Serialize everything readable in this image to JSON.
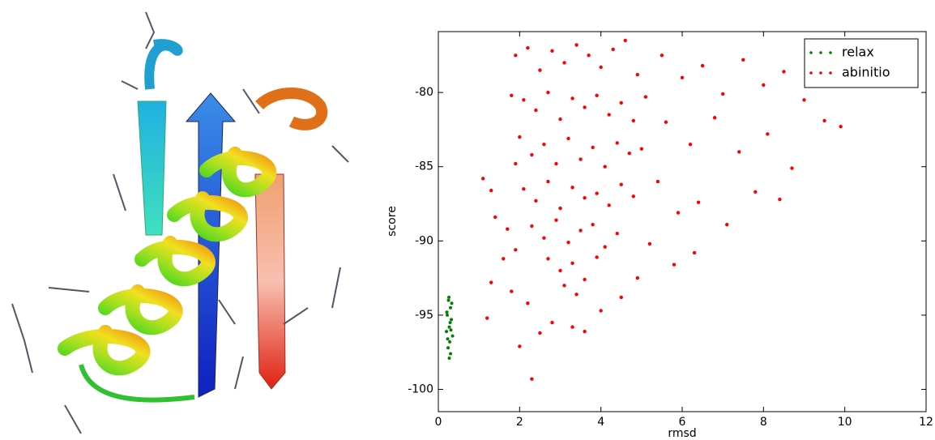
{
  "chart_data": {
    "type": "scatter",
    "x_label": "rmsd",
    "y_label": "score",
    "xlim": [
      0,
      12
    ],
    "ylim": [
      -101.5,
      -75.9
    ],
    "xticks": [
      0,
      2,
      4,
      6,
      8,
      10,
      12
    ],
    "yticks": [
      -100,
      -95,
      -90,
      -85,
      -80
    ],
    "grid": false,
    "legend": "upper right",
    "series": [
      {
        "name": "relax",
        "color": "#008000",
        "x": [
          0.25,
          0.3,
          0.22,
          0.32,
          0.27,
          0.2,
          0.35,
          0.28,
          0.24,
          0.3,
          0.26,
          0.33,
          0.21,
          0.29,
          0.31,
          0.23,
          0.27
        ],
        "values": [
          -94,
          -94.5,
          -95,
          -95.3,
          -95.8,
          -96.1,
          -96.4,
          -96.8,
          -97.2,
          -97.6,
          -93.8,
          -94.2,
          -94.8,
          -95.5,
          -96,
          -96.6,
          -97.9
        ]
      },
      {
        "name": "abinitio",
        "color": "#ff0000",
        "x": [
          2.2,
          2.5,
          2.8,
          3.1,
          3.4,
          3.7,
          4.0,
          4.3,
          4.6,
          4.9,
          2.1,
          2.4,
          2.7,
          3.0,
          3.3,
          3.6,
          3.9,
          4.2,
          4.5,
          4.8,
          5.1,
          2.0,
          2.3,
          2.6,
          2.9,
          3.2,
          3.5,
          3.8,
          4.1,
          4.4,
          4.7,
          5.0,
          2.1,
          2.4,
          2.7,
          3.0,
          3.3,
          3.6,
          3.9,
          4.2,
          4.5,
          4.8,
          2.3,
          2.6,
          2.9,
          3.2,
          3.5,
          3.8,
          4.1,
          4.4,
          2.7,
          3.0,
          3.3,
          3.6,
          3.9,
          3.4,
          3.1,
          5.5,
          6.0,
          6.5,
          7.0,
          7.5,
          8.0,
          8.5,
          9.0,
          5.6,
          6.2,
          6.8,
          7.4,
          8.1,
          8.7,
          9.5,
          9.9,
          5.4,
          5.9,
          6.4,
          7.1,
          7.8,
          8.4,
          5.2,
          5.8,
          6.3,
          4.9,
          4.5,
          4.0,
          3.3,
          2.8,
          2.2,
          1.8,
          1.9,
          1.6,
          1.3,
          1.2,
          1.1,
          1.4,
          1.7,
          1.9,
          2.3,
          2.5,
          3.6,
          2.0,
          1.3,
          1.8,
          1.9
        ],
        "values": [
          -77,
          -78.5,
          -77.2,
          -78,
          -76.8,
          -77.5,
          -78.3,
          -77.1,
          -76.5,
          -78.8,
          -80.5,
          -81.2,
          -80,
          -81.8,
          -80.4,
          -81,
          -80.2,
          -81.5,
          -80.7,
          -81.9,
          -80.3,
          -83,
          -84.2,
          -83.5,
          -84.8,
          -83.1,
          -84.5,
          -83.7,
          -85,
          -83.4,
          -84.1,
          -83.8,
          -86.5,
          -87.3,
          -86,
          -87.8,
          -86.4,
          -87.1,
          -86.8,
          -87.6,
          -86.2,
          -87,
          -89,
          -89.8,
          -88.6,
          -90.1,
          -89.3,
          -88.9,
          -90.4,
          -89.5,
          -91.2,
          -92,
          -91.5,
          -92.6,
          -91.1,
          -93.6,
          -93,
          -77.5,
          -79,
          -78.2,
          -80.1,
          -77.8,
          -79.5,
          -78.6,
          -80.5,
          -82,
          -83.5,
          -81.7,
          -84,
          -82.8,
          -85.1,
          -81.9,
          -82.3,
          -86,
          -88.1,
          -87.4,
          -88.9,
          -86.7,
          -87.2,
          -90.2,
          -91.6,
          -90.8,
          -92.5,
          -93.8,
          -94.7,
          -95.8,
          -95.5,
          -94.2,
          -93.4,
          -90.6,
          -91.2,
          -92.8,
          -95.2,
          -85.8,
          -88.4,
          -89.2,
          -84.8,
          -99.3,
          -96.2,
          -96.1,
          -97.1,
          -86.6,
          -80.2,
          -77.5
        ]
      }
    ]
  }
}
